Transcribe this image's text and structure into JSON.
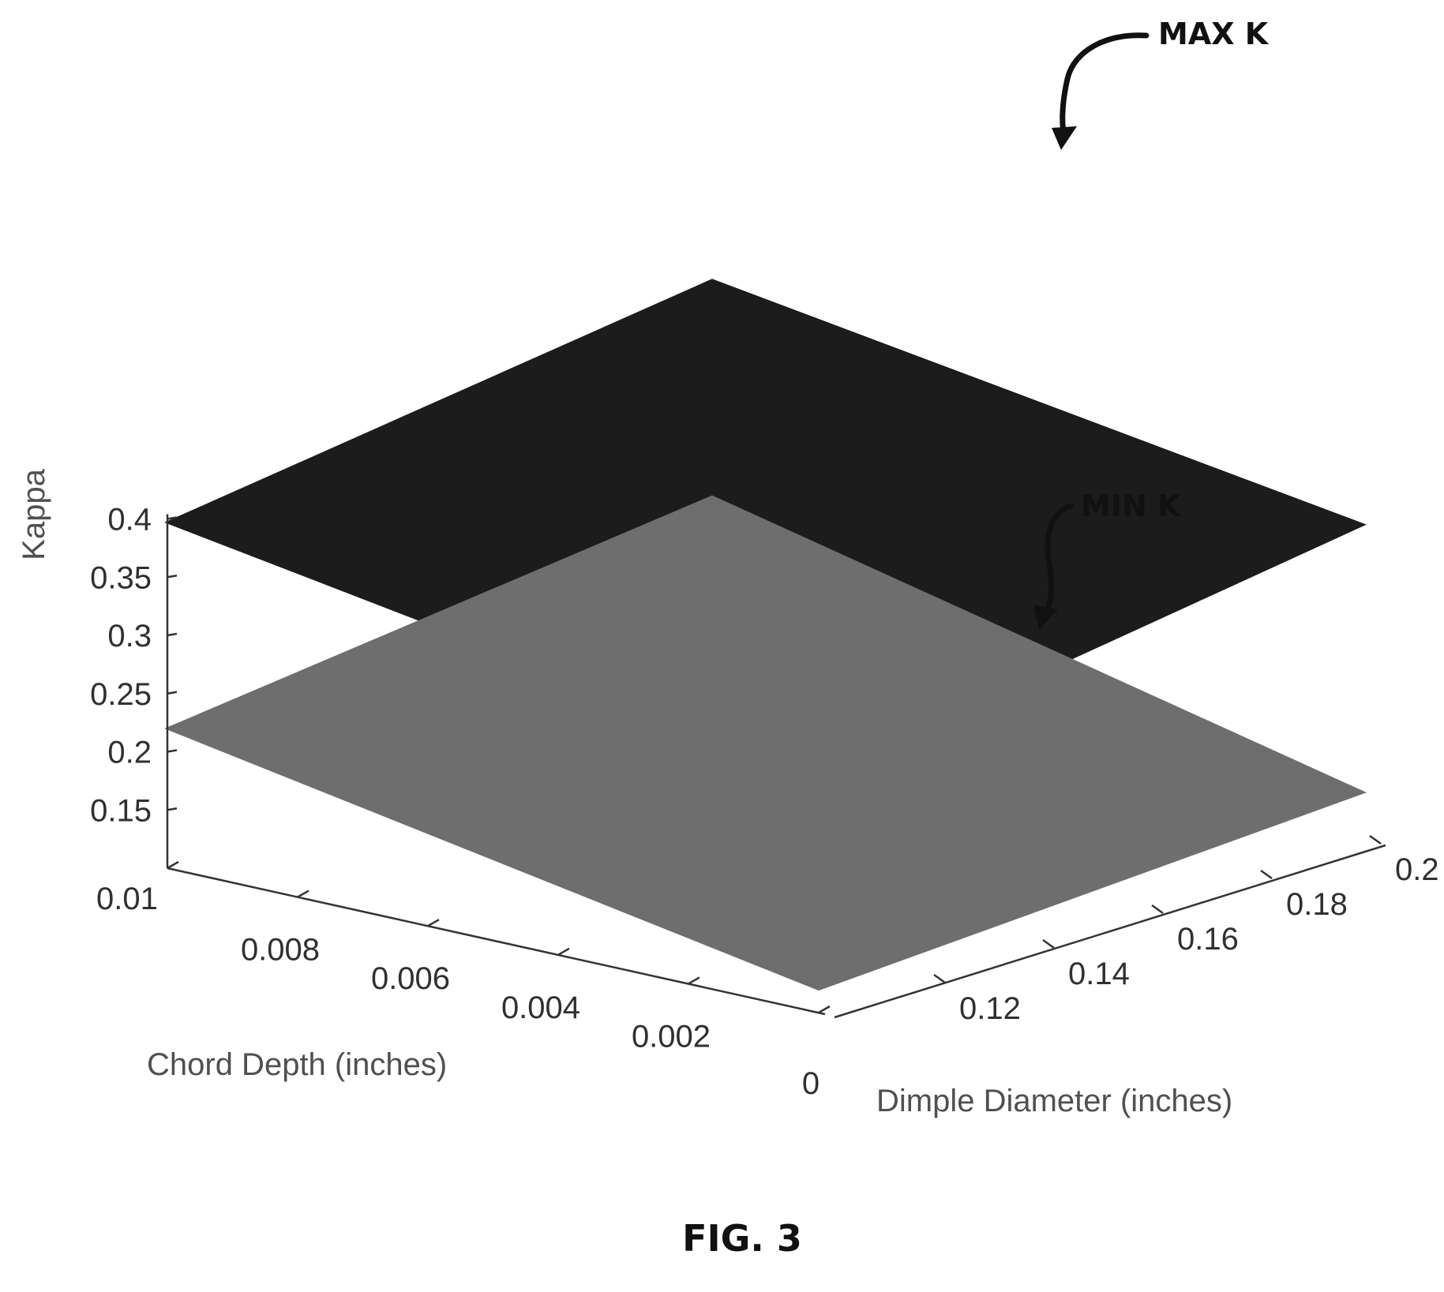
{
  "figure_label": "FIG. 3",
  "chart_data": {
    "type": "surface3d",
    "title": "",
    "zlabel": "Kappa",
    "xlabel": "Chord Depth (inches)",
    "ylabel": "Dimple Diameter (inches)",
    "z_ticks": [
      "0.15",
      "0.2",
      "0.25",
      "0.3",
      "0.35",
      "0.4"
    ],
    "x_ticks": [
      "0.01",
      "0.008",
      "0.006",
      "0.004",
      "0.002",
      "0"
    ],
    "y_ticks": [
      "0.12",
      "0.14",
      "0.16",
      "0.18",
      "0.2"
    ],
    "xlim": [
      0,
      0.01
    ],
    "ylim": [
      0.1,
      0.2
    ],
    "zlim": [
      0.1,
      0.4
    ],
    "series": [
      {
        "name": "MAX K",
        "color": "#1c1c1c",
        "corners": [
          {
            "x": 0.01,
            "y": 0.1,
            "z": 0.397
          },
          {
            "x": 0.01,
            "y": 0.2,
            "z": 0.456
          },
          {
            "x": 0,
            "y": 0.2,
            "z": 0.37
          },
          {
            "x": 0,
            "y": 0.1,
            "z": 0.305
          }
        ]
      },
      {
        "name": "MIN K",
        "color": "#6e6e6e",
        "corners": [
          {
            "x": 0.01,
            "y": 0.1,
            "z": 0.22
          },
          {
            "x": 0.01,
            "y": 0.2,
            "z": 0.27
          },
          {
            "x": 0,
            "y": 0.2,
            "z": 0.14
          },
          {
            "x": 0,
            "y": 0.1,
            "z": 0.12
          }
        ]
      }
    ],
    "annotations": [
      {
        "text": "MAX K",
        "target": "MAX K"
      },
      {
        "text": "MIN K",
        "target": "MIN K"
      }
    ]
  }
}
